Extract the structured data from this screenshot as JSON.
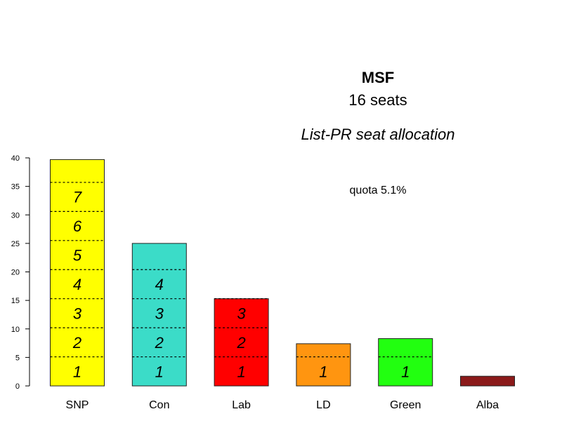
{
  "chart_data": {
    "type": "bar",
    "title": "MSF",
    "subtitle": "16 seats",
    "caption": "List-PR seat allocation",
    "annotation": "quota 5.1%",
    "quota": 5.1,
    "ylim": [
      0,
      40
    ],
    "y_ticks": [
      "0",
      "5",
      "10",
      "15",
      "20",
      "25",
      "30",
      "35",
      "40"
    ],
    "categories": [
      "SNP",
      "Con",
      "Lab",
      "LD",
      "Green",
      "Alba"
    ],
    "values": [
      39.7,
      25.0,
      15.3,
      7.4,
      8.3,
      1.7
    ],
    "seats": [
      7,
      4,
      3,
      1,
      1,
      0
    ],
    "colors": [
      "#ffff00",
      "#3bdcc8",
      "#ff0000",
      "#ff9510",
      "#22ff10",
      "#8b1a1a"
    ]
  }
}
